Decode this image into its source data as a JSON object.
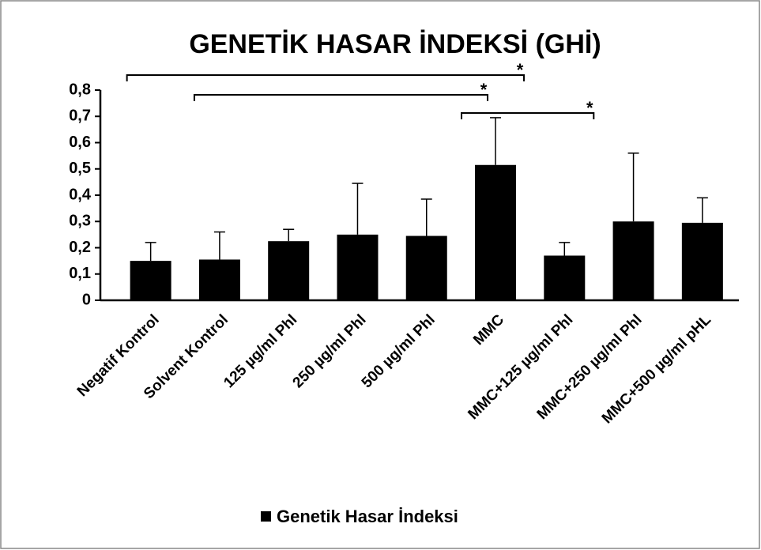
{
  "chart_data": {
    "type": "bar",
    "title": "GENETİK HASAR İNDEKSİ (GHİ)",
    "categories": [
      "Negatif Kontrol",
      "Solvent Kontrol",
      "125 µg/ml Phl",
      "250 µg/ml Phl",
      "500 µg/ml Phl",
      "MMC",
      "MMC+125 µg/ml Phl",
      "MMC+250 µg/ml Phl",
      "MMC+500 µg/ml pHL"
    ],
    "series": [
      {
        "name": "Genetik Hasar İndeksi",
        "color": "#000000",
        "values": [
          0.15,
          0.155,
          0.225,
          0.25,
          0.245,
          0.515,
          0.17,
          0.3,
          0.295
        ],
        "errors": [
          0.07,
          0.105,
          0.045,
          0.195,
          0.14,
          0.18,
          0.05,
          0.26,
          0.095
        ]
      }
    ],
    "ylim": [
      0,
      0.8
    ],
    "yticks": [
      0,
      {
        "value": 0.1,
        "label": "0,1"
      },
      {
        "value": 0.2,
        "label": "0,2"
      },
      {
        "value": 0.3,
        "label": "0,3"
      },
      {
        "value": 0.4,
        "label": "0,4"
      },
      {
        "value": 0.5,
        "label": "0,5"
      },
      {
        "value": 0.6,
        "label": "0,6"
      },
      {
        "value": 0.7,
        "label": "0,7"
      },
      {
        "value": 0.8,
        "label": "0,8"
      }
    ],
    "annotations": [
      {
        "text": "*",
        "from": 0,
        "to": 5
      },
      {
        "text": "*",
        "from": 1,
        "to": 5
      },
      {
        "text": "*",
        "from": 5,
        "to": 6
      }
    ],
    "legend": "bottom"
  }
}
